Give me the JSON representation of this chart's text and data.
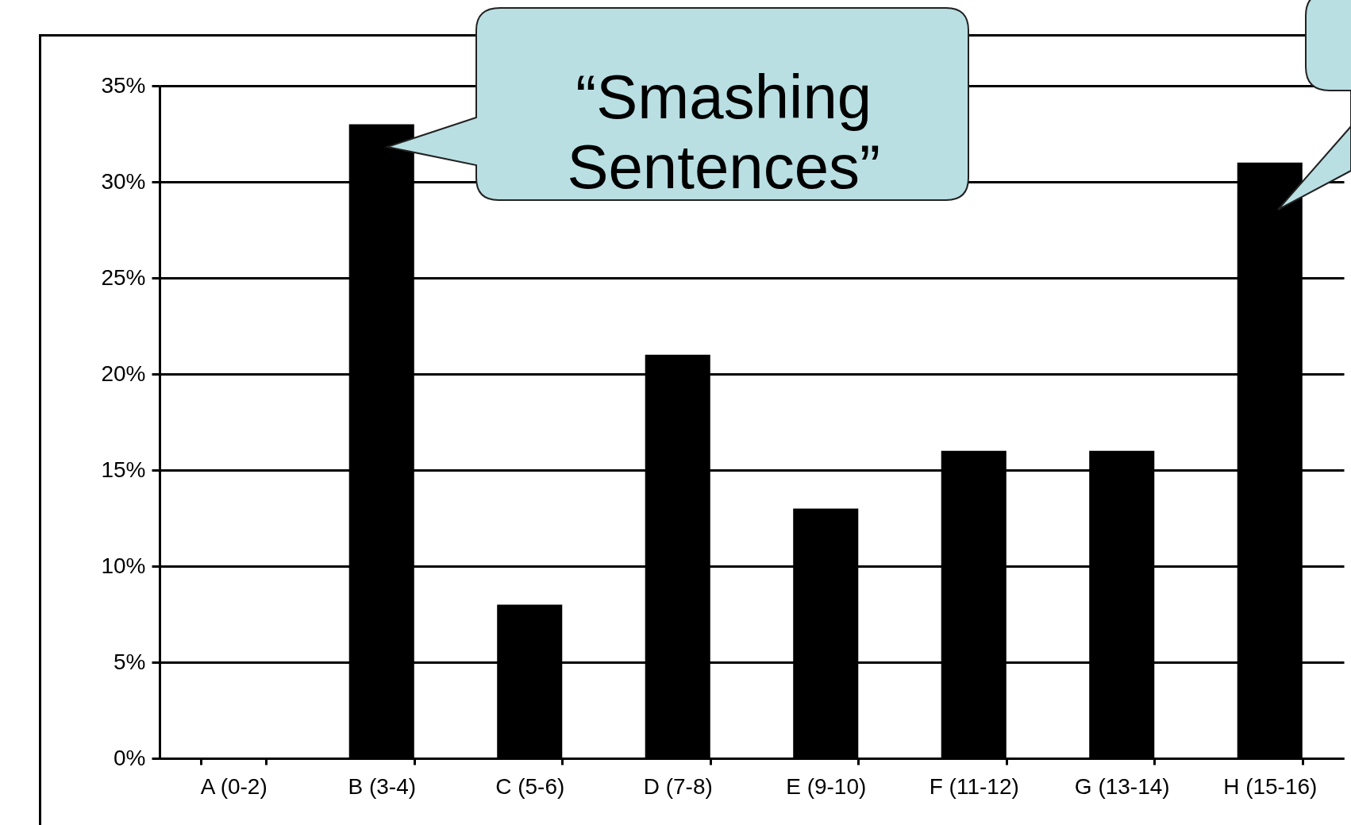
{
  "chart_data": {
    "type": "bar",
    "categories": [
      "A (0-2)",
      "B (3-4)",
      "C (5-6)",
      "D (7-8)",
      "E (9-10)",
      "F (11-12)",
      "G (13-14)",
      "H (15-16)"
    ],
    "values": [
      0,
      33,
      8,
      21,
      13,
      16,
      16,
      31
    ],
    "color": "#000000",
    "ylim": [
      0,
      35
    ],
    "yticks": [
      {
        "value": 0,
        "label": "0%"
      },
      {
        "value": 5,
        "label": "5%"
      },
      {
        "value": 10,
        "label": "10%"
      },
      {
        "value": 15,
        "label": "15%"
      },
      {
        "value": 20,
        "label": "20%"
      },
      {
        "value": 25,
        "label": "25%"
      },
      {
        "value": 30,
        "label": "30%"
      },
      {
        "value": 35,
        "label": "35%"
      }
    ],
    "grid": "y",
    "annotations": [
      {
        "text": "“Smashing Sentences”",
        "x": "B (3-4)",
        "y": 33
      }
    ]
  }
}
